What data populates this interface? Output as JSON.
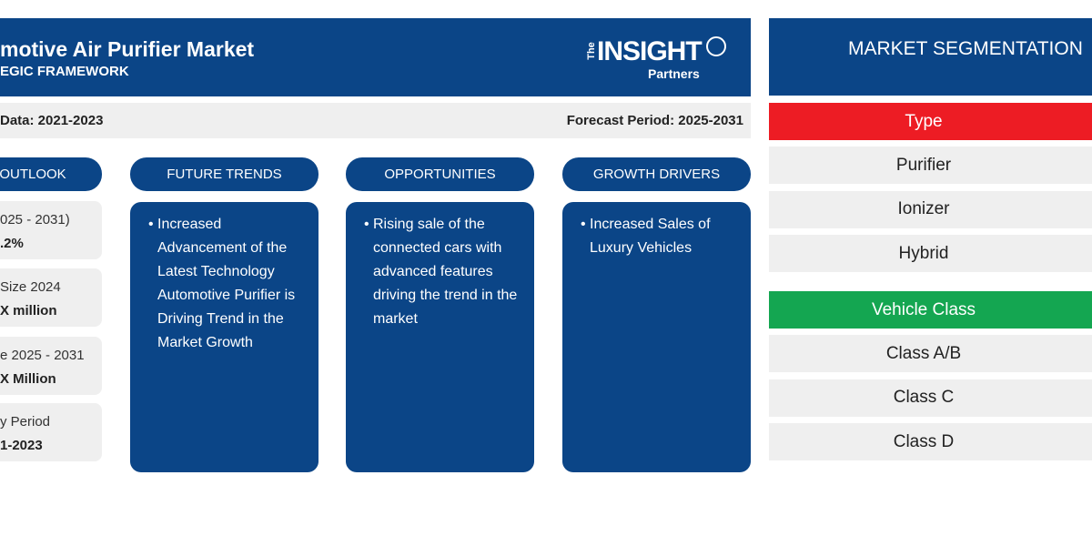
{
  "header": {
    "title": "motive Air Purifier Market",
    "subtitle": "EGIC FRAMEWORK",
    "logo": {
      "the": "The",
      "name": "INSIGHT",
      "sub": "Partners"
    }
  },
  "period_bar": {
    "historic": "Data: 2021-2023",
    "forecast": "Forecast Period: 2025-2031"
  },
  "outlook": {
    "heading": "OUTLOOK",
    "cards": [
      {
        "label": "025 - 2031)",
        "value": ".2%"
      },
      {
        "label": "Size 2024",
        "value": "X million"
      },
      {
        "label": "e 2025 - 2031",
        "value": "X Million"
      },
      {
        "label": "y Period",
        "value": "1-2023"
      }
    ]
  },
  "columns": [
    {
      "heading": "FUTURE TRENDS",
      "bullets": [
        "Increased Advancement of the Latest Technology Automotive Purifier is Driving Trend in the Market Growth"
      ]
    },
    {
      "heading": "OPPORTUNITIES",
      "bullets": [
        "Rising sale of the connected cars with advanced features driving the trend in the market"
      ]
    },
    {
      "heading": "GROWTH DRIVERS",
      "bullets": [
        "Increased Sales of Luxury Vehicles"
      ]
    }
  ],
  "segmentation": {
    "title": "MARKET SEGMENTATION",
    "groups": [
      {
        "name": "Type",
        "items": [
          "Purifier",
          "Ionizer",
          "Hybrid"
        ]
      },
      {
        "name": "Vehicle Class",
        "items": [
          "Class A/B",
          "Class C",
          "Class D"
        ]
      }
    ]
  }
}
